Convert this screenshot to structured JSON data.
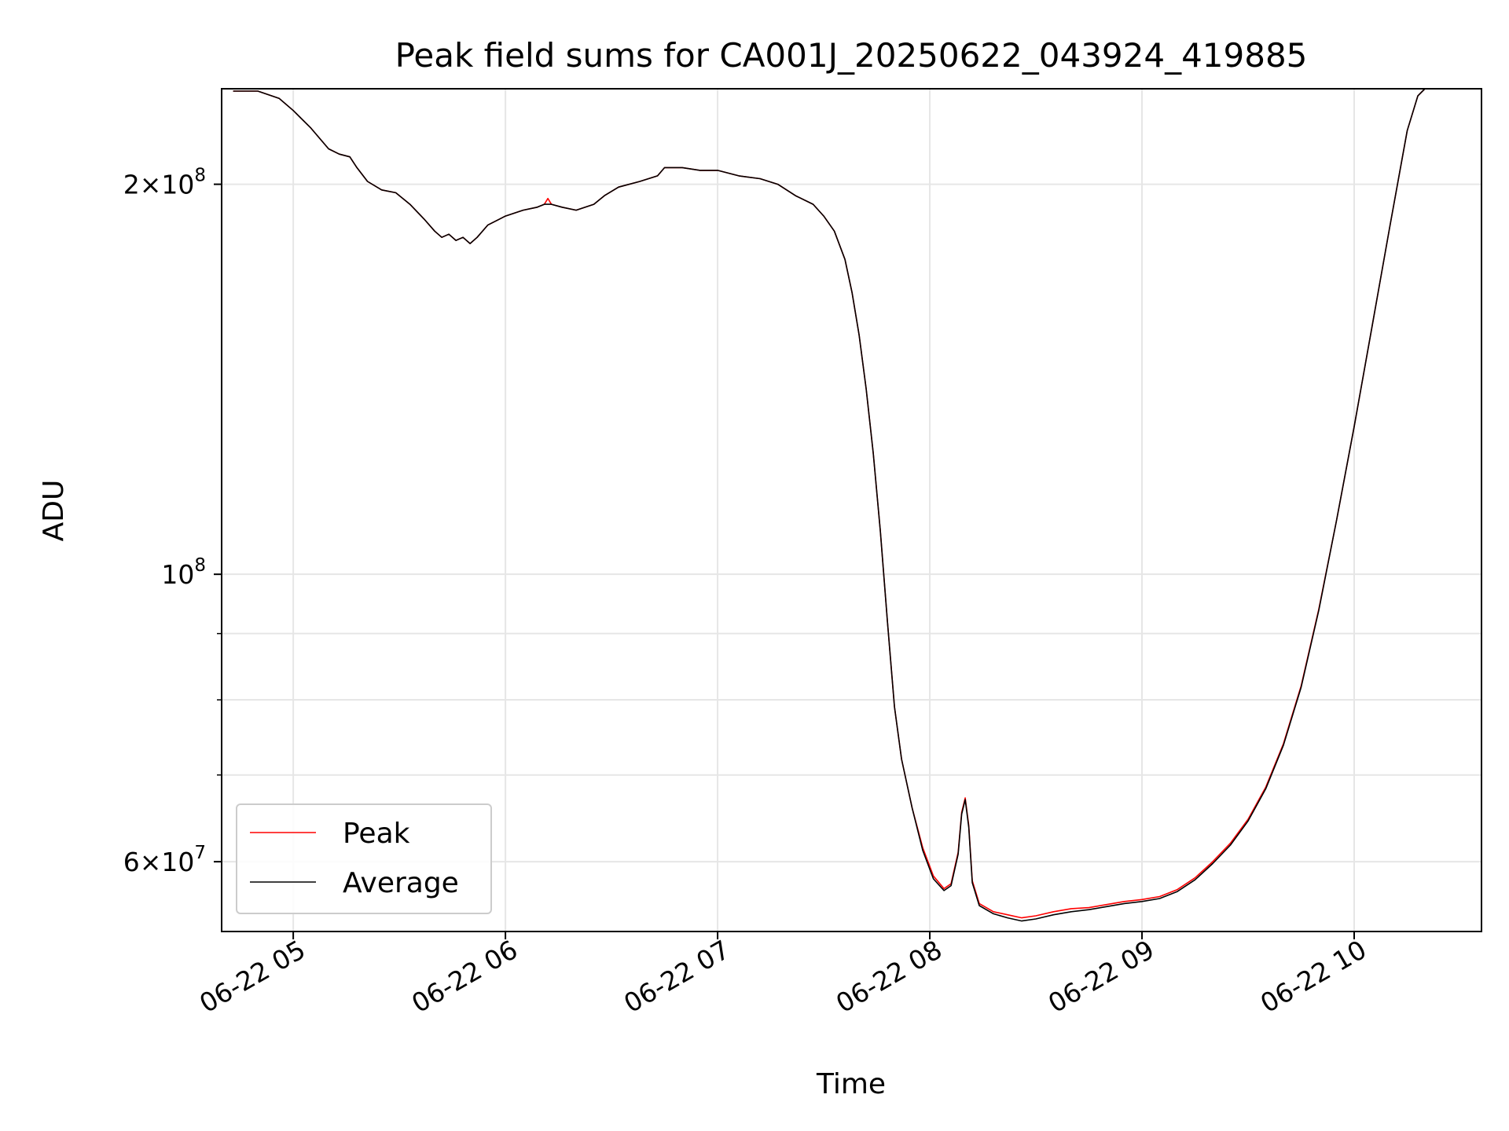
{
  "chart_data": {
    "type": "line",
    "title": "Peak field sums for CA001J_20250622_043924_419885",
    "xlabel": "Time",
    "ylabel": "ADU",
    "y_scale": "log",
    "ylim": [
      53000000,
      237000000
    ],
    "xlim": [
      "06-22 04:39:45",
      "06-22 10:36:00"
    ],
    "grid": true,
    "legend_placement": "lower-left",
    "x_ticks": [
      {
        "t": "06-22 05:00",
        "label": "06-22 05"
      },
      {
        "t": "06-22 06:00",
        "label": "06-22 06"
      },
      {
        "t": "06-22 07:00",
        "label": "06-22 07"
      },
      {
        "t": "06-22 08:00",
        "label": "06-22 08"
      },
      {
        "t": "06-22 09:00",
        "label": "06-22 09"
      },
      {
        "t": "06-22 10:00",
        "label": "06-22 10"
      }
    ],
    "y_ticks": [
      {
        "value": 200000000,
        "base": "2×10",
        "exp": "8"
      },
      {
        "value": 100000000,
        "base": "10",
        "exp": "8"
      },
      {
        "value": 60000000,
        "base": "6×10",
        "exp": "7"
      }
    ],
    "y_minor_ticks": [
      70000000,
      80000000,
      90000000
    ],
    "series": [
      {
        "name": "Peak",
        "color": "#ff0000",
        "points": [
          [
            "06-22 04:43",
            236000000
          ],
          [
            "06-22 04:50",
            236000000
          ],
          [
            "06-22 04:56",
            233000000
          ],
          [
            "06-22 05:00",
            228000000
          ],
          [
            "06-22 05:05",
            221000000
          ],
          [
            "06-22 05:10",
            213000000
          ],
          [
            "06-22 05:13",
            211000000
          ],
          [
            "06-22 05:16",
            210000000
          ],
          [
            "06-22 05:18",
            206000000
          ],
          [
            "06-22 05:21",
            201000000
          ],
          [
            "06-22 05:25",
            198000000
          ],
          [
            "06-22 05:29",
            197000000
          ],
          [
            "06-22 05:33",
            193000000
          ],
          [
            "06-22 05:37",
            188000000
          ],
          [
            "06-22 05:40",
            184000000
          ],
          [
            "06-22 05:42",
            182000000
          ],
          [
            "06-22 05:44",
            183000000
          ],
          [
            "06-22 05:46",
            181000000
          ],
          [
            "06-22 05:48",
            182000000
          ],
          [
            "06-22 05:50",
            180000000
          ],
          [
            "06-22 05:52",
            182000000
          ],
          [
            "06-22 05:55",
            186000000
          ],
          [
            "06-22 06:00",
            189000000
          ],
          [
            "06-22 06:05",
            191000000
          ],
          [
            "06-22 06:09",
            192000000
          ],
          [
            "06-22 06:11",
            193000000
          ],
          [
            "06-22 06:12",
            195000000
          ],
          [
            "06-22 06:13",
            193000000
          ],
          [
            "06-22 06:16",
            192000000
          ],
          [
            "06-22 06:20",
            191000000
          ],
          [
            "06-22 06:25",
            193000000
          ],
          [
            "06-22 06:28",
            196000000
          ],
          [
            "06-22 06:32",
            199000000
          ],
          [
            "06-22 06:38",
            201000000
          ],
          [
            "06-22 06:43",
            203000000
          ],
          [
            "06-22 06:45",
            206000000
          ],
          [
            "06-22 06:50",
            206000000
          ],
          [
            "06-22 06:55",
            205000000
          ],
          [
            "06-22 07:00",
            205000000
          ],
          [
            "06-22 07:06",
            203000000
          ],
          [
            "06-22 07:12",
            202000000
          ],
          [
            "06-22 07:17",
            200000000
          ],
          [
            "06-22 07:22",
            196000000
          ],
          [
            "06-22 07:27",
            193000000
          ],
          [
            "06-22 07:30",
            189000000
          ],
          [
            "06-22 07:33",
            184000000
          ],
          [
            "06-22 07:36",
            175000000
          ],
          [
            "06-22 07:38",
            165000000
          ],
          [
            "06-22 07:40",
            153000000
          ],
          [
            "06-22 07:42",
            139000000
          ],
          [
            "06-22 07:44",
            124000000
          ],
          [
            "06-22 07:46",
            108000000
          ],
          [
            "06-22 07:48",
            92000000
          ],
          [
            "06-22 07:50",
            79000000
          ],
          [
            "06-22 07:52",
            72000000
          ],
          [
            "06-22 07:55",
            66000000
          ],
          [
            "06-22 07:58",
            61500000
          ],
          [
            "06-22 08:01",
            58500000
          ],
          [
            "06-22 08:04",
            57200000
          ],
          [
            "06-22 08:06",
            57700000
          ],
          [
            "06-22 08:08",
            61000000
          ],
          [
            "06-22 08:09",
            65500000
          ],
          [
            "06-22 08:10",
            67200000
          ],
          [
            "06-22 08:11",
            64000000
          ],
          [
            "06-22 08:12",
            58000000
          ],
          [
            "06-22 08:14",
            55700000
          ],
          [
            "06-22 08:18",
            54900000
          ],
          [
            "06-22 08:22",
            54600000
          ],
          [
            "06-22 08:26",
            54300000
          ],
          [
            "06-22 08:30",
            54500000
          ],
          [
            "06-22 08:35",
            54900000
          ],
          [
            "06-22 08:40",
            55200000
          ],
          [
            "06-22 08:45",
            55300000
          ],
          [
            "06-22 08:50",
            55600000
          ],
          [
            "06-22 08:55",
            55900000
          ],
          [
            "06-22 09:00",
            56100000
          ],
          [
            "06-22 09:05",
            56400000
          ],
          [
            "06-22 09:10",
            57100000
          ],
          [
            "06-22 09:15",
            58300000
          ],
          [
            "06-22 09:20",
            60000000
          ],
          [
            "06-22 09:25",
            62000000
          ],
          [
            "06-22 09:30",
            64700000
          ],
          [
            "06-22 09:35",
            68500000
          ],
          [
            "06-22 09:40",
            74000000
          ],
          [
            "06-22 09:45",
            82000000
          ],
          [
            "06-22 09:50",
            94000000
          ],
          [
            "06-22 09:55",
            110000000
          ],
          [
            "06-22 10:00",
            130000000
          ],
          [
            "06-22 10:05",
            155000000
          ],
          [
            "06-22 10:10",
            185000000
          ],
          [
            "06-22 10:15",
            220000000
          ],
          [
            "06-22 10:18",
            234000000
          ],
          [
            "06-22 10:20",
            237000000
          ]
        ]
      },
      {
        "name": "Average",
        "color": "#000000",
        "points": [
          [
            "06-22 04:43",
            236000000
          ],
          [
            "06-22 04:50",
            236000000
          ],
          [
            "06-22 04:56",
            233000000
          ],
          [
            "06-22 05:00",
            228000000
          ],
          [
            "06-22 05:05",
            221000000
          ],
          [
            "06-22 05:10",
            213000000
          ],
          [
            "06-22 05:13",
            211000000
          ],
          [
            "06-22 05:16",
            210000000
          ],
          [
            "06-22 05:18",
            206000000
          ],
          [
            "06-22 05:21",
            201000000
          ],
          [
            "06-22 05:25",
            198000000
          ],
          [
            "06-22 05:29",
            197000000
          ],
          [
            "06-22 05:33",
            193000000
          ],
          [
            "06-22 05:37",
            188000000
          ],
          [
            "06-22 05:40",
            184000000
          ],
          [
            "06-22 05:42",
            182000000
          ],
          [
            "06-22 05:44",
            183000000
          ],
          [
            "06-22 05:46",
            181000000
          ],
          [
            "06-22 05:48",
            182000000
          ],
          [
            "06-22 05:50",
            180000000
          ],
          [
            "06-22 05:52",
            182000000
          ],
          [
            "06-22 05:55",
            186000000
          ],
          [
            "06-22 06:00",
            189000000
          ],
          [
            "06-22 06:05",
            191000000
          ],
          [
            "06-22 06:09",
            192000000
          ],
          [
            "06-22 06:11",
            193000000
          ],
          [
            "06-22 06:12",
            193000000
          ],
          [
            "06-22 06:13",
            193000000
          ],
          [
            "06-22 06:16",
            192000000
          ],
          [
            "06-22 06:20",
            191000000
          ],
          [
            "06-22 06:25",
            193000000
          ],
          [
            "06-22 06:28",
            196000000
          ],
          [
            "06-22 06:32",
            199000000
          ],
          [
            "06-22 06:38",
            201000000
          ],
          [
            "06-22 06:43",
            203000000
          ],
          [
            "06-22 06:45",
            206000000
          ],
          [
            "06-22 06:50",
            206000000
          ],
          [
            "06-22 06:55",
            205000000
          ],
          [
            "06-22 07:00",
            205000000
          ],
          [
            "06-22 07:06",
            203000000
          ],
          [
            "06-22 07:12",
            202000000
          ],
          [
            "06-22 07:17",
            200000000
          ],
          [
            "06-22 07:22",
            196000000
          ],
          [
            "06-22 07:27",
            193000000
          ],
          [
            "06-22 07:30",
            189000000
          ],
          [
            "06-22 07:33",
            184000000
          ],
          [
            "06-22 07:36",
            175000000
          ],
          [
            "06-22 07:38",
            165000000
          ],
          [
            "06-22 07:40",
            153000000
          ],
          [
            "06-22 07:42",
            139000000
          ],
          [
            "06-22 07:44",
            124000000
          ],
          [
            "06-22 07:46",
            108000000
          ],
          [
            "06-22 07:48",
            92000000
          ],
          [
            "06-22 07:50",
            79000000
          ],
          [
            "06-22 07:52",
            72000000
          ],
          [
            "06-22 07:55",
            66000000
          ],
          [
            "06-22 07:58",
            61200000
          ],
          [
            "06-22 08:01",
            58200000
          ],
          [
            "06-22 08:04",
            57000000
          ],
          [
            "06-22 08:06",
            57500000
          ],
          [
            "06-22 08:08",
            60800000
          ],
          [
            "06-22 08:09",
            65300000
          ],
          [
            "06-22 08:10",
            67000000
          ],
          [
            "06-22 08:11",
            63800000
          ],
          [
            "06-22 08:12",
            57800000
          ],
          [
            "06-22 08:14",
            55500000
          ],
          [
            "06-22 08:18",
            54700000
          ],
          [
            "06-22 08:22",
            54300000
          ],
          [
            "06-22 08:26",
            54000000
          ],
          [
            "06-22 08:30",
            54200000
          ],
          [
            "06-22 08:35",
            54600000
          ],
          [
            "06-22 08:40",
            54900000
          ],
          [
            "06-22 08:45",
            55100000
          ],
          [
            "06-22 08:50",
            55400000
          ],
          [
            "06-22 08:55",
            55700000
          ],
          [
            "06-22 09:00",
            55900000
          ],
          [
            "06-22 09:05",
            56200000
          ],
          [
            "06-22 09:10",
            56900000
          ],
          [
            "06-22 09:15",
            58100000
          ],
          [
            "06-22 09:20",
            59800000
          ],
          [
            "06-22 09:25",
            61800000
          ],
          [
            "06-22 09:30",
            64500000
          ],
          [
            "06-22 09:35",
            68300000
          ],
          [
            "06-22 09:40",
            73800000
          ],
          [
            "06-22 09:45",
            81800000
          ],
          [
            "06-22 09:50",
            93800000
          ],
          [
            "06-22 09:55",
            110000000
          ],
          [
            "06-22 10:00",
            130000000
          ],
          [
            "06-22 10:05",
            155000000
          ],
          [
            "06-22 10:10",
            185000000
          ],
          [
            "06-22 10:15",
            220000000
          ],
          [
            "06-22 10:18",
            234000000
          ],
          [
            "06-22 10:20",
            237000000
          ]
        ]
      }
    ]
  }
}
